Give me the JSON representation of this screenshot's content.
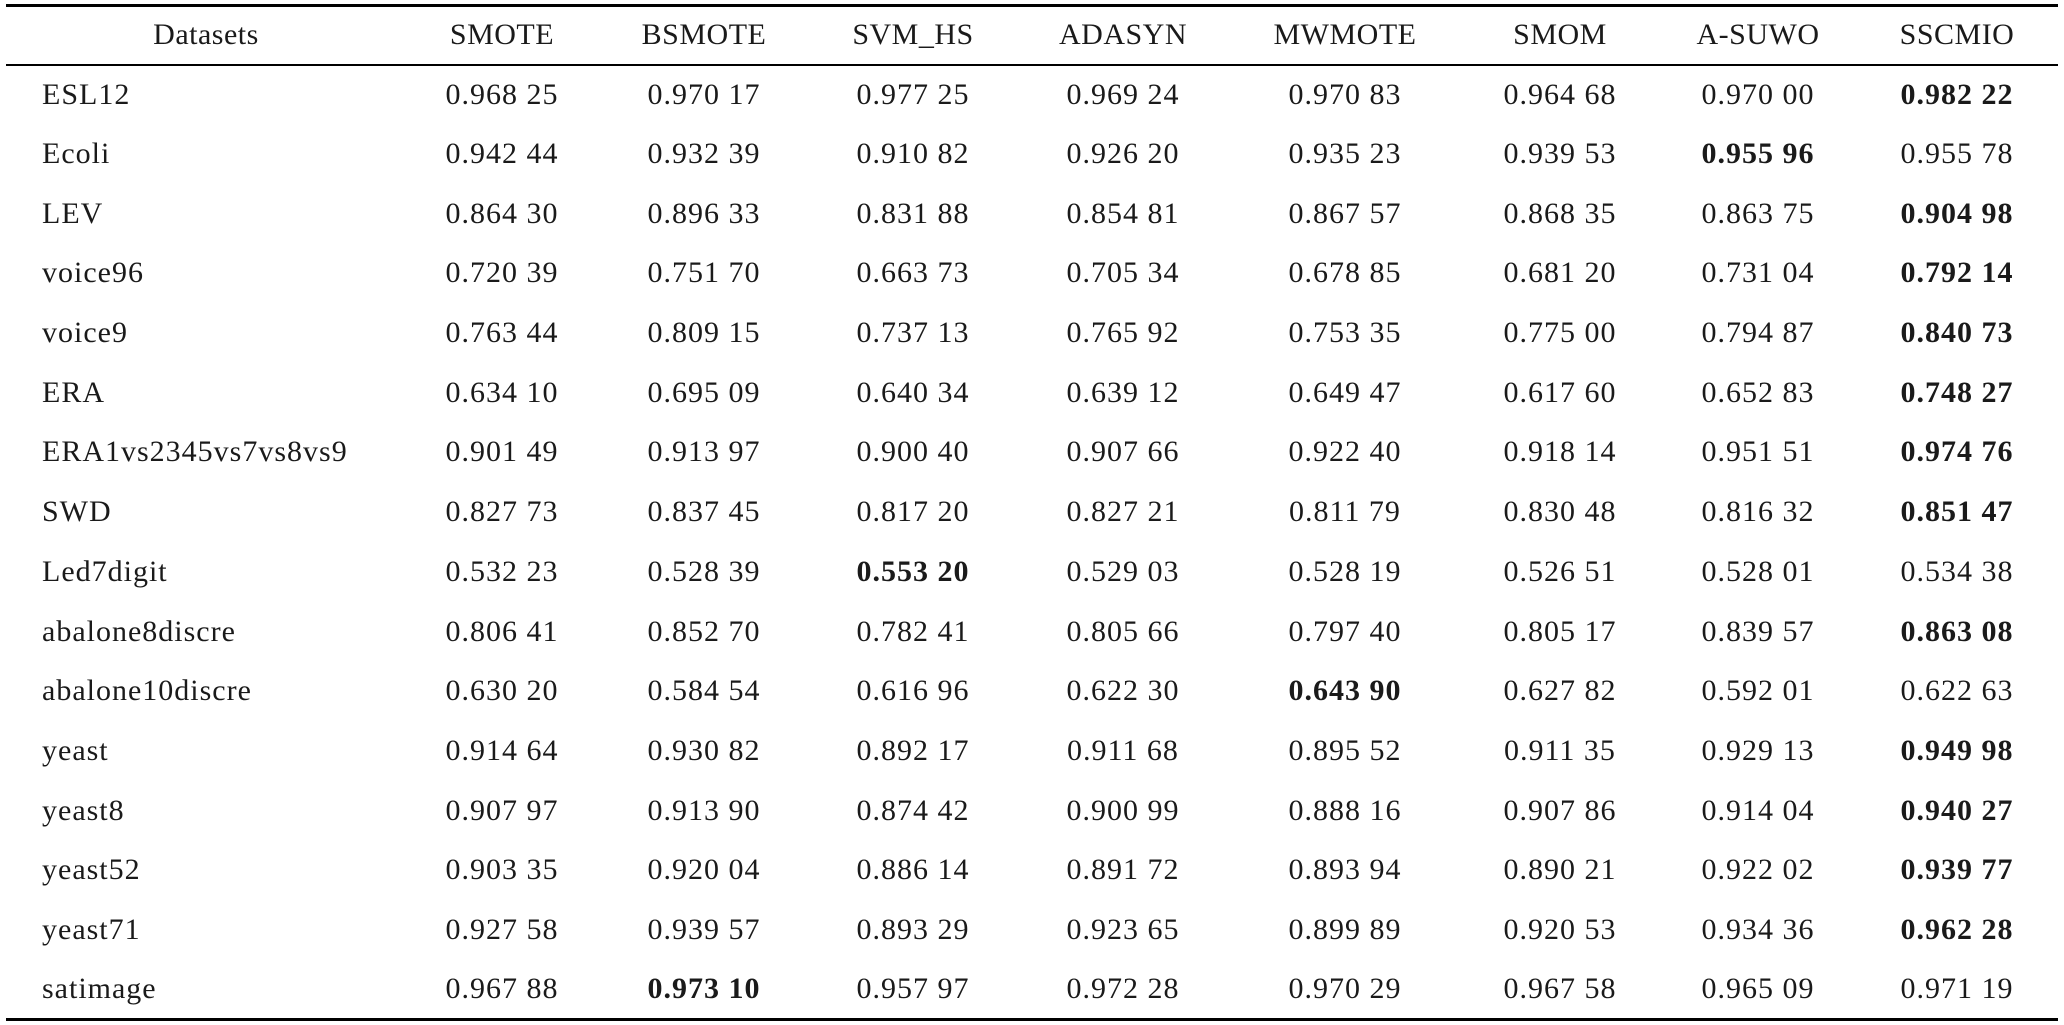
{
  "table": {
    "headers": [
      "Datasets",
      "SMOTE",
      "BSMOTE",
      "SVM_HS",
      "ADASYN",
      "MWMOTE",
      "SMOM",
      "A-SUWO",
      "SSCMIO"
    ],
    "rows": [
      {
        "dataset": "ESL12",
        "values": [
          "0.968 25",
          "0.970 17",
          "0.977 25",
          "0.969 24",
          "0.970 83",
          "0.964 68",
          "0.970 00",
          "0.982 22"
        ],
        "best": 7
      },
      {
        "dataset": "Ecoli",
        "values": [
          "0.942 44",
          "0.932 39",
          "0.910 82",
          "0.926 20",
          "0.935 23",
          "0.939 53",
          "0.955 96",
          "0.955 78"
        ],
        "best": 6
      },
      {
        "dataset": "LEV",
        "values": [
          "0.864 30",
          "0.896 33",
          "0.831 88",
          "0.854 81",
          "0.867 57",
          "0.868 35",
          "0.863 75",
          "0.904 98"
        ],
        "best": 7
      },
      {
        "dataset": "voice96",
        "values": [
          "0.720 39",
          "0.751 70",
          "0.663 73",
          "0.705 34",
          "0.678 85",
          "0.681 20",
          "0.731 04",
          "0.792 14"
        ],
        "best": 7
      },
      {
        "dataset": "voice9",
        "values": [
          "0.763 44",
          "0.809 15",
          "0.737 13",
          "0.765 92",
          "0.753 35",
          "0.775 00",
          "0.794 87",
          "0.840 73"
        ],
        "best": 7
      },
      {
        "dataset": "ERA",
        "values": [
          "0.634 10",
          "0.695 09",
          "0.640 34",
          "0.639 12",
          "0.649 47",
          "0.617 60",
          "0.652 83",
          "0.748 27"
        ],
        "best": 7
      },
      {
        "dataset": "ERA1vs2345vs7vs8vs9",
        "values": [
          "0.901 49",
          "0.913 97",
          "0.900 40",
          "0.907 66",
          "0.922 40",
          "0.918 14",
          "0.951 51",
          "0.974 76"
        ],
        "best": 7
      },
      {
        "dataset": "SWD",
        "values": [
          "0.827 73",
          "0.837 45",
          "0.817 20",
          "0.827 21",
          "0.811 79",
          "0.830 48",
          "0.816 32",
          "0.851 47"
        ],
        "best": 7
      },
      {
        "dataset": "Led7digit",
        "values": [
          "0.532 23",
          "0.528 39",
          "0.553 20",
          "0.529 03",
          "0.528 19",
          "0.526 51",
          "0.528 01",
          "0.534 38"
        ],
        "best": 2
      },
      {
        "dataset": "abalone8discre",
        "values": [
          "0.806 41",
          "0.852 70",
          "0.782 41",
          "0.805 66",
          "0.797 40",
          "0.805 17",
          "0.839 57",
          "0.863 08"
        ],
        "best": 7
      },
      {
        "dataset": "abalone10discre",
        "values": [
          "0.630 20",
          "0.584 54",
          "0.616 96",
          "0.622 30",
          "0.643 90",
          "0.627 82",
          "0.592 01",
          "0.622 63"
        ],
        "best": 4
      },
      {
        "dataset": "yeast",
        "values": [
          "0.914 64",
          "0.930 82",
          "0.892 17",
          "0.911 68",
          "0.895 52",
          "0.911 35",
          "0.929 13",
          "0.949 98"
        ],
        "best": 7
      },
      {
        "dataset": "yeast8",
        "values": [
          "0.907 97",
          "0.913 90",
          "0.874 42",
          "0.900 99",
          "0.888 16",
          "0.907 86",
          "0.914 04",
          "0.940 27"
        ],
        "best": 7
      },
      {
        "dataset": "yeast52",
        "values": [
          "0.903 35",
          "0.920 04",
          "0.886 14",
          "0.891 72",
          "0.893 94",
          "0.890 21",
          "0.922 02",
          "0.939 77"
        ],
        "best": 7
      },
      {
        "dataset": "yeast71",
        "values": [
          "0.927 58",
          "0.939 57",
          "0.893 29",
          "0.923 65",
          "0.899 89",
          "0.920 53",
          "0.934 36",
          "0.962 28"
        ],
        "best": 7
      },
      {
        "dataset": "satimage",
        "values": [
          "0.967 88",
          "0.973 10",
          "0.957 97",
          "0.972 28",
          "0.970 29",
          "0.967 58",
          "0.965 09",
          "0.971 19"
        ],
        "best": 1
      }
    ]
  }
}
